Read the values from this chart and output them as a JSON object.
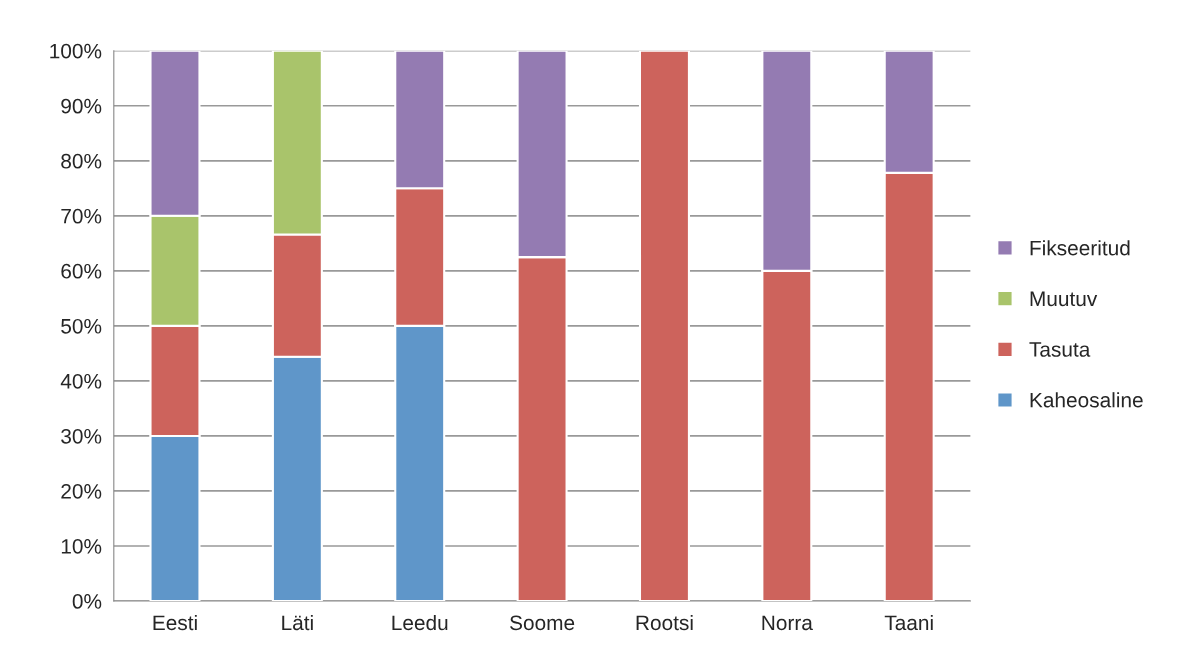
{
  "chart_data": {
    "type": "bar",
    "stacked": true,
    "categories": [
      "Eesti",
      "Läti",
      "Leedu",
      "Soome",
      "Rootsi",
      "Norra",
      "Taani"
    ],
    "series": [
      {
        "name": "Kaheosaline",
        "color": "#5f96c9",
        "values": [
          30,
          44.4,
          50,
          null,
          null,
          null,
          null
        ]
      },
      {
        "name": "Tasuta",
        "color": "#cd635c",
        "values": [
          20,
          22.2,
          25,
          62.5,
          100,
          60,
          77.8
        ]
      },
      {
        "name": "Muutuv",
        "color": "#a9c46b",
        "values": [
          20,
          33.4,
          null,
          null,
          null,
          null,
          null
        ]
      },
      {
        "name": "Fikseeritud",
        "color": "#947bb2",
        "values": [
          30,
          null,
          25,
          37.5,
          null,
          40,
          22.2
        ]
      }
    ],
    "ylim": [
      0,
      100
    ],
    "yticks": [
      {
        "value": 0,
        "label": "0%"
      },
      {
        "value": 10,
        "label": "10%"
      },
      {
        "value": 20,
        "label": "20%"
      },
      {
        "value": 30,
        "label": "30%"
      },
      {
        "value": 40,
        "label": "40%"
      },
      {
        "value": 50,
        "label": "50%"
      },
      {
        "value": 60,
        "label": "60%"
      },
      {
        "value": 70,
        "label": "70%"
      },
      {
        "value": 80,
        "label": "80%"
      },
      {
        "value": 90,
        "label": "90%"
      },
      {
        "value": 100,
        "label": "100%"
      }
    ],
    "grid": "y",
    "legend": "right"
  }
}
